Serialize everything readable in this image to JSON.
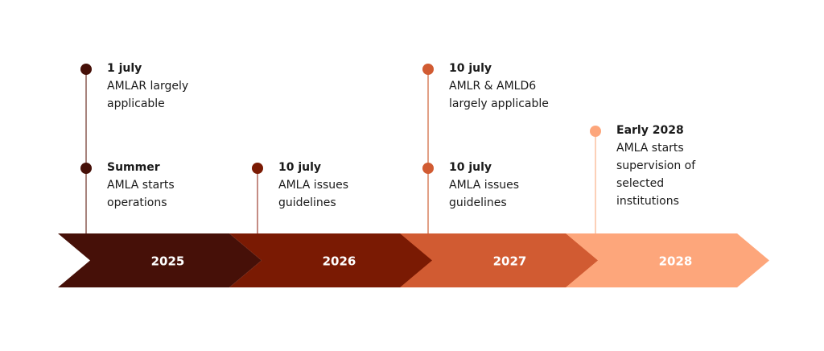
{
  "colors": [
    "#461008",
    "#7a1a03",
    "#d15b32",
    "#fda67b"
  ],
  "line_colors": [
    "#8a5a52",
    "#b0655a",
    "#d8825f",
    "#fbc0a0"
  ],
  "years": [
    "2025",
    "2026",
    "2027",
    "2028"
  ],
  "events": [
    {
      "year_index": 0,
      "title": "1 july",
      "lines": [
        "AMLAR largely",
        "applicable"
      ]
    },
    {
      "year_index": 0,
      "title": "Summer",
      "lines": [
        "AMLA starts",
        "operations"
      ]
    },
    {
      "year_index": 1,
      "title": "10 july",
      "lines": [
        "AMLA issues",
        "guidelines"
      ]
    },
    {
      "year_index": 2,
      "title": "10 july",
      "lines": [
        "AMLR & AMLD6",
        "largely applicable"
      ]
    },
    {
      "year_index": 2,
      "title": "10 july",
      "lines": [
        "AMLA issues",
        "guidelines"
      ]
    },
    {
      "year_index": 3,
      "title": "Early 2028",
      "lines": [
        "AMLA starts",
        "supervision of",
        "selected",
        "institutions"
      ]
    }
  ]
}
